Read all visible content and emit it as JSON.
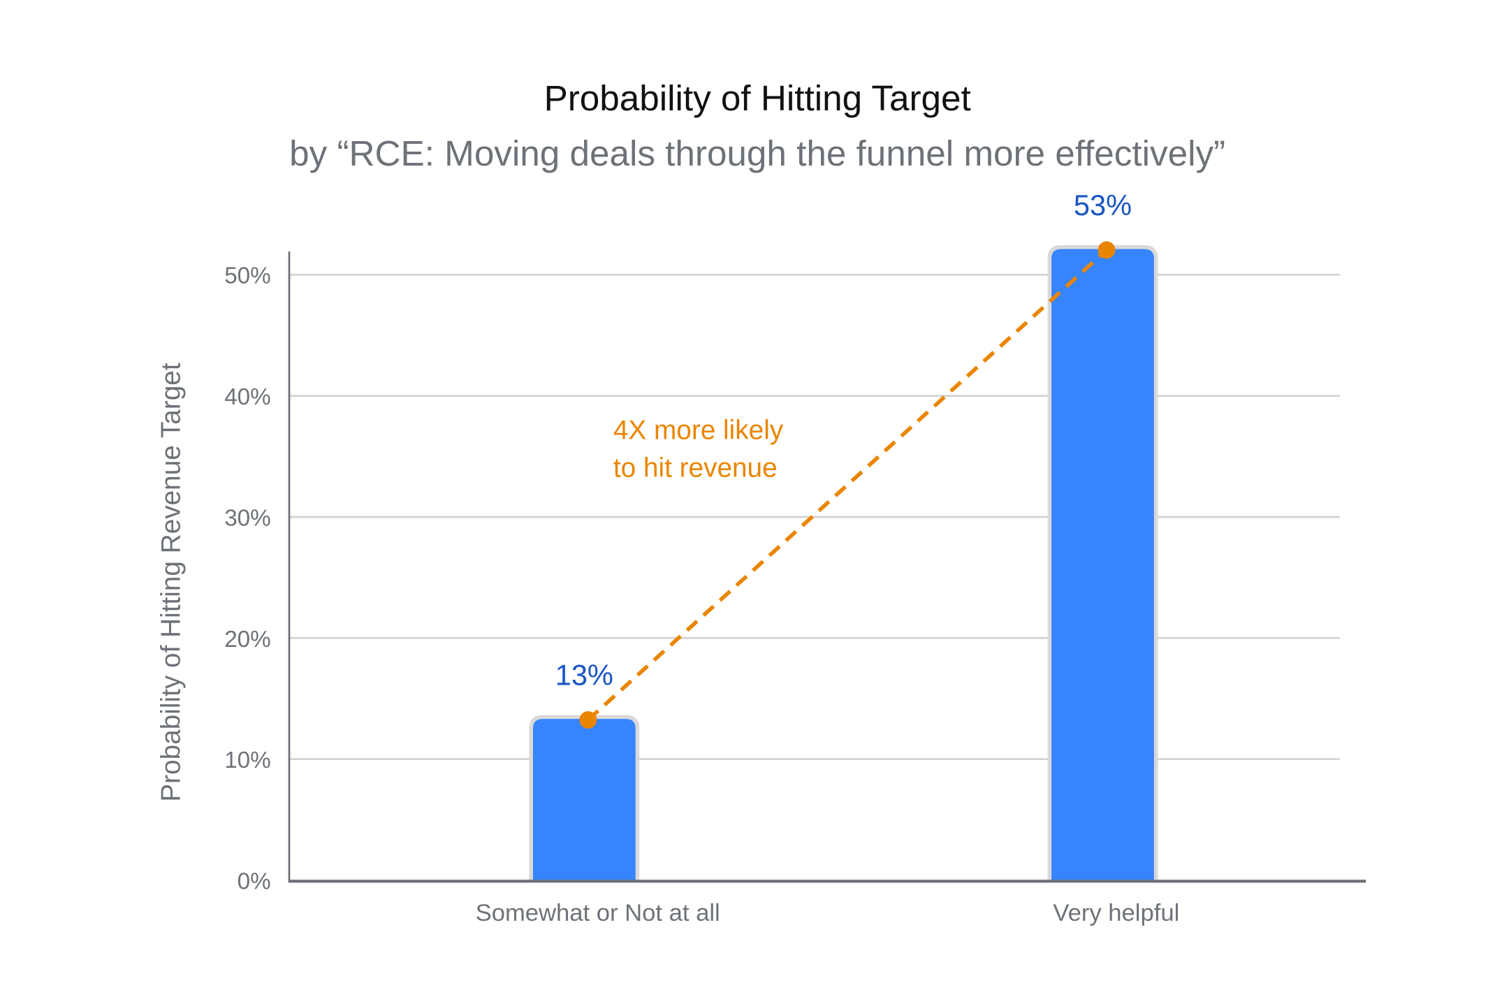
{
  "chart_data": {
    "type": "bar",
    "title": "Probability of Hitting Target",
    "subtitle": "by “RCE: Moving deals through the funnel more effectively”",
    "xlabel": "",
    "ylabel": "Probability of Hitting Revenue Target",
    "categories": [
      "Somewhat or Not at all",
      "Very helpful"
    ],
    "values": [
      13,
      53
    ],
    "data_labels": [
      "13%",
      "53%"
    ],
    "ylim": [
      0,
      52
    ],
    "yticks": [
      0,
      10,
      20,
      30,
      40,
      50
    ],
    "ytick_labels": [
      "0%",
      "10%",
      "20%",
      "30%",
      "40%",
      "50%"
    ],
    "grid": true,
    "annotation": {
      "lines": [
        "4X more likely",
        "to hit revenue"
      ],
      "connector": "dashed line between bar tops"
    },
    "colors": {
      "bar": "#3784FF",
      "bar_outline": "#D9D9D9",
      "data_label": "#1A56C4",
      "annotation": "#EA8500",
      "axis_text": "#6D7278",
      "grid": "#D3D3D3"
    }
  }
}
